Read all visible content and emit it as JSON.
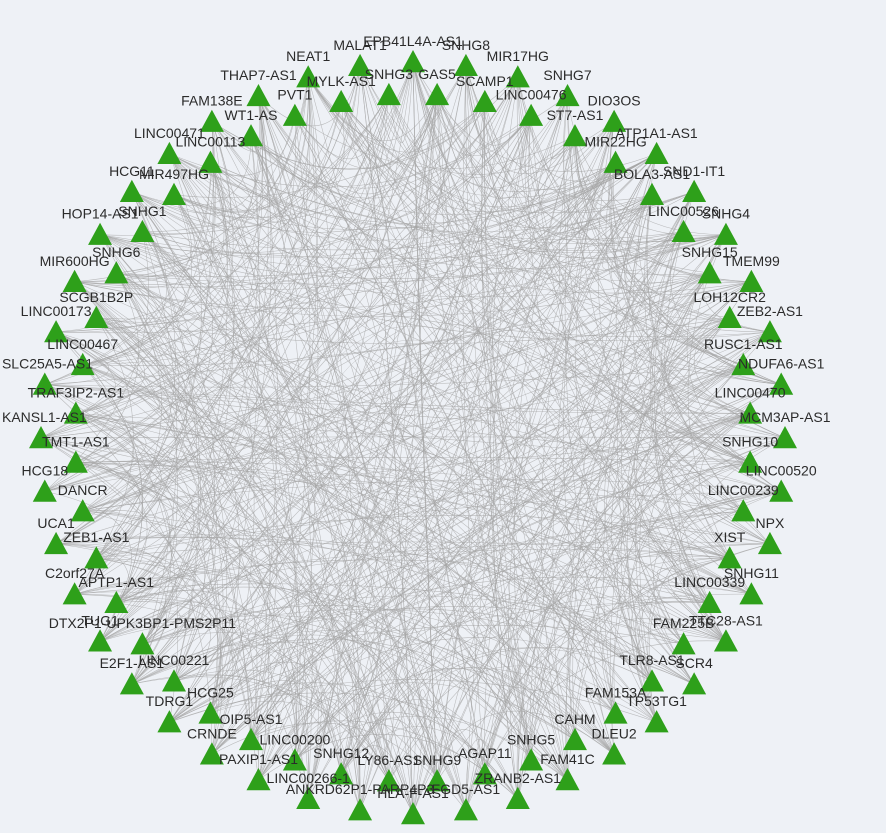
{
  "network": {
    "node_color": "#2ea01a",
    "edge_color": "#a6a6a6",
    "background": "#eef1f6",
    "node_shape": "triangle",
    "nodes": [
      "EPB41L4A-AS1",
      "GAS5",
      "SNHG8",
      "SCAMP1",
      "MIR17HG",
      "LINC00476",
      "SNHG7",
      "ST7-AS1",
      "DIO3OS",
      "MIR22HG",
      "ATP1A1-AS1",
      "BOLA3-AS1",
      "SND1-IT1",
      "LINC00526",
      "SNHG4",
      "SNHG15",
      "TMEM99",
      "LOH12CR2",
      "ZEB2-AS1",
      "RUSC1-AS1",
      "NDUFA6-AS1",
      "LINC00470",
      "MCM3AP-AS1",
      "SNHG10",
      "LINC00520",
      "LINC00239",
      "NPX",
      "XIST",
      "SNHG11",
      "LINC00339",
      "TTC28-AS1",
      "FAM225B",
      "SCR4",
      "TLR8-AS1",
      "TP53TG1",
      "FAM153A",
      "DLEU2",
      "CAHM",
      "FAM41C",
      "SNHG5",
      "ZRANB2-AS1",
      "AGAP11",
      "FGD5-AS1",
      "SNHG9",
      "HLA-F-AS1",
      "LY86-AS1",
      "ANKRD62P1-PARP4P3",
      "SNHG12",
      "LINC00266-1",
      "LINC00200",
      "PAXIP1-AS1",
      "OIP5-AS1",
      "CRNDE",
      "HCG25",
      "TDRG1",
      "LINC00221",
      "E2F1-AS1",
      "DTX2P1-UPK3BP1-PMS2P11",
      "TUG1",
      "APTP1-AS1",
      "C2orf27A",
      "ZEB1-AS1",
      "UCA1",
      "DANCR",
      "HCG18",
      "TMT1-AS1",
      "KANSL1-AS1",
      "TRAF3IP2-AS1",
      "SLC25A5-AS1",
      "LINC00467",
      "LINC00173",
      "SCGB1B2P",
      "MIR600HG",
      "SNHG6",
      "HOP14-AS1",
      "SNHG1",
      "HCG11",
      "MIR497HG",
      "LINC00471",
      "LINC00113",
      "FAM138E",
      "WT1-AS",
      "THAP7-AS1",
      "PVT1",
      "NEAT1",
      "MYLK-AS1",
      "MALAT1",
      "SNHG3"
    ]
  }
}
